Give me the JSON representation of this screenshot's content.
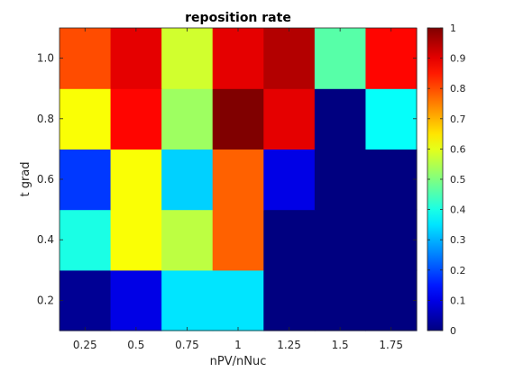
{
  "chart_data": {
    "type": "heatmap",
    "title": "reposition rate",
    "xlabel": "nPV/nNuc",
    "ylabel": "t grad",
    "x": [
      0.25,
      0.5,
      0.75,
      1,
      1.25,
      1.5,
      1.75
    ],
    "x_tick_labels": [
      "0.25",
      "0.5",
      "0.75",
      "1",
      "1.25",
      "1.5",
      "1.75"
    ],
    "y": [
      0.2,
      0.4,
      0.6,
      0.8,
      1.0
    ],
    "y_tick_labels": [
      "0.2",
      "0.4",
      "0.6",
      "0.8",
      "1.0"
    ],
    "z": [
      [
        0.02,
        0.1,
        0.35,
        0.35,
        0.0,
        0.0,
        0.0
      ],
      [
        0.4,
        0.62,
        0.56,
        0.78,
        0.0,
        0.0,
        0.0
      ],
      [
        0.18,
        0.62,
        0.33,
        0.78,
        0.1,
        0.0,
        0.0
      ],
      [
        0.62,
        0.87,
        0.53,
        1.0,
        0.9,
        0.0,
        0.38
      ],
      [
        0.8,
        0.9,
        0.58,
        0.9,
        0.95,
        0.46,
        0.87
      ]
    ],
    "colormap": "jet",
    "clim": [
      0,
      1
    ],
    "colorbar_ticks": [
      0,
      0.1,
      0.2,
      0.3,
      0.4,
      0.5,
      0.6,
      0.7,
      0.8,
      0.9,
      1
    ],
    "colorbar_tick_labels": [
      "0",
      "0.1",
      "0.2",
      "0.3",
      "0.4",
      "0.5",
      "0.6",
      "0.7",
      "0.8",
      "0.9",
      "1"
    ],
    "colorbar_placement": "right",
    "grid": false
  }
}
